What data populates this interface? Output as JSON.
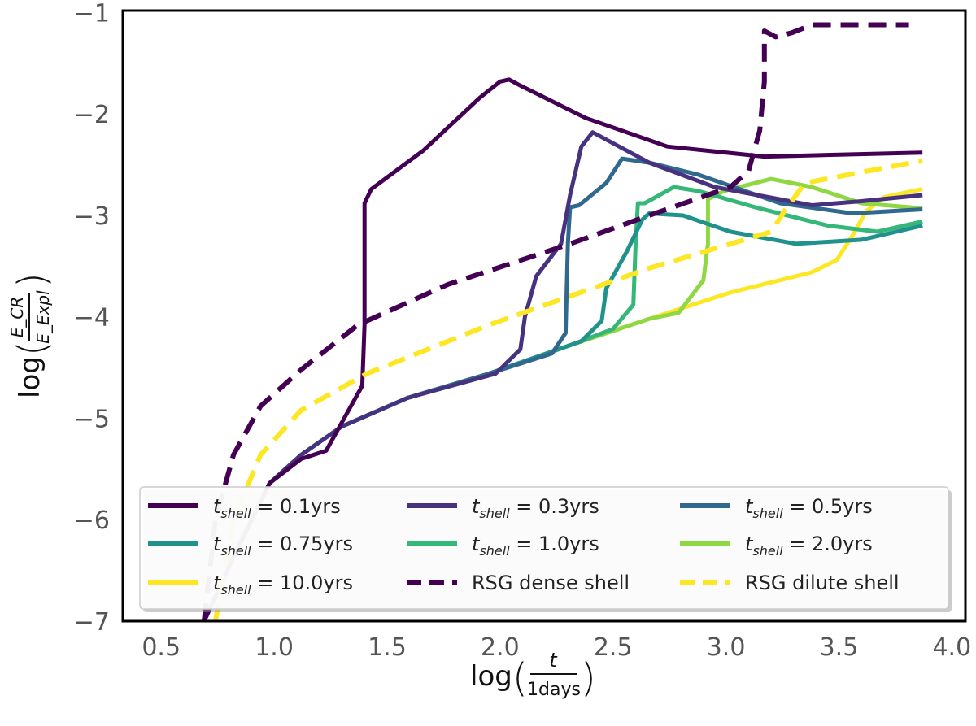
{
  "chart_data": {
    "type": "line",
    "title": "",
    "xlabel": {
      "prefix": "log",
      "numerator": "t",
      "denominator": "1days"
    },
    "ylabel": {
      "prefix": "log",
      "numerator": "E_CR",
      "denominator": "E_Expl"
    },
    "xlim": [
      0.33,
      4.06
    ],
    "ylim": [
      -7,
      -0.98
    ],
    "xticks": [
      0.5,
      1.0,
      1.5,
      2.0,
      2.5,
      3.0,
      3.5,
      4.0
    ],
    "xtick_labels": [
      "0.5",
      "1.0",
      "1.5",
      "2.0",
      "2.5",
      "3.0",
      "3.5",
      "4.0"
    ],
    "yticks": [
      -7,
      -6,
      -5,
      -4,
      -3,
      -2,
      -1
    ],
    "ytick_labels": [
      "−7",
      "−6",
      "−5",
      "−4",
      "−3",
      "−2",
      "−1"
    ],
    "grid": false,
    "legend_placement": "lower-center",
    "series": [
      {
        "name": "t_shell = 0.1yrs",
        "sub": "shell",
        "val": "0.1yrs",
        "color": "#440154",
        "dash": false,
        "points": [
          [
            0.69,
            -7
          ],
          [
            0.83,
            -6.32
          ],
          [
            0.98,
            -5.64
          ],
          [
            1.12,
            -5.4
          ],
          [
            1.23,
            -5.32
          ],
          [
            1.34,
            -4.88
          ],
          [
            1.39,
            -4.68
          ],
          [
            1.4,
            -4.08
          ],
          [
            1.4,
            -2.88
          ],
          [
            1.43,
            -2.74
          ],
          [
            1.66,
            -2.36
          ],
          [
            1.91,
            -1.84
          ],
          [
            2.0,
            -1.68
          ],
          [
            2.04,
            -1.66
          ],
          [
            2.09,
            -1.72
          ],
          [
            2.38,
            -2.04
          ],
          [
            2.74,
            -2.32
          ],
          [
            3.17,
            -2.42
          ],
          [
            3.87,
            -2.38
          ]
        ]
      },
      {
        "name": "t_shell = 0.3yrs",
        "sub": "shell",
        "val": "0.3yrs",
        "color": "#46327e",
        "dash": false,
        "points": [
          [
            0.69,
            -7
          ],
          [
            0.83,
            -6.32
          ],
          [
            0.98,
            -5.64
          ],
          [
            1.12,
            -5.36
          ],
          [
            1.3,
            -5.08
          ],
          [
            1.59,
            -4.8
          ],
          [
            1.98,
            -4.56
          ],
          [
            2.09,
            -4.32
          ],
          [
            2.11,
            -4.0
          ],
          [
            2.16,
            -3.6
          ],
          [
            2.27,
            -3.28
          ],
          [
            2.31,
            -2.8
          ],
          [
            2.36,
            -2.32
          ],
          [
            2.41,
            -2.18
          ],
          [
            2.66,
            -2.48
          ],
          [
            2.95,
            -2.72
          ],
          [
            3.38,
            -2.9
          ],
          [
            3.6,
            -2.86
          ],
          [
            3.87,
            -2.8
          ]
        ]
      },
      {
        "name": "t_shell = 0.5yrs",
        "sub": "shell",
        "val": "0.5yrs",
        "color": "#31688e",
        "dash": false,
        "points": [
          [
            0.69,
            -7
          ],
          [
            0.83,
            -6.32
          ],
          [
            0.98,
            -5.64
          ],
          [
            1.12,
            -5.36
          ],
          [
            1.3,
            -5.08
          ],
          [
            1.59,
            -4.8
          ],
          [
            1.95,
            -4.56
          ],
          [
            2.23,
            -4.36
          ],
          [
            2.29,
            -4.16
          ],
          [
            2.3,
            -3.28
          ],
          [
            2.31,
            -2.92
          ],
          [
            2.35,
            -2.9
          ],
          [
            2.47,
            -2.68
          ],
          [
            2.54,
            -2.44
          ],
          [
            2.66,
            -2.48
          ],
          [
            2.88,
            -2.6
          ],
          [
            3.24,
            -2.88
          ],
          [
            3.56,
            -2.98
          ],
          [
            3.87,
            -2.94
          ]
        ]
      },
      {
        "name": "t_shell = 0.75yrs",
        "sub": "shell",
        "val": "0.75yrs",
        "color": "#21918c",
        "dash": false,
        "points": [
          [
            0.69,
            -7
          ],
          [
            0.83,
            -6.32
          ],
          [
            0.98,
            -5.64
          ],
          [
            1.12,
            -5.36
          ],
          [
            1.3,
            -5.08
          ],
          [
            1.59,
            -4.8
          ],
          [
            1.95,
            -4.56
          ],
          [
            2.36,
            -4.24
          ],
          [
            2.45,
            -4.04
          ],
          [
            2.47,
            -3.72
          ],
          [
            2.56,
            -3.36
          ],
          [
            2.63,
            -3.04
          ],
          [
            2.66,
            -2.98
          ],
          [
            2.81,
            -3.0
          ],
          [
            3.02,
            -3.16
          ],
          [
            3.31,
            -3.28
          ],
          [
            3.6,
            -3.24
          ],
          [
            3.87,
            -3.1
          ]
        ]
      },
      {
        "name": "t_shell = 1.0yrs",
        "sub": "shell",
        "val": "1.0yrs",
        "color": "#35b779",
        "dash": false,
        "points": [
          [
            0.69,
            -7
          ],
          [
            0.83,
            -6.32
          ],
          [
            0.98,
            -5.64
          ],
          [
            1.12,
            -5.36
          ],
          [
            1.3,
            -5.08
          ],
          [
            1.59,
            -4.8
          ],
          [
            1.95,
            -4.56
          ],
          [
            2.31,
            -4.28
          ],
          [
            2.5,
            -4.12
          ],
          [
            2.59,
            -3.88
          ],
          [
            2.6,
            -3.28
          ],
          [
            2.61,
            -2.88
          ],
          [
            2.64,
            -2.88
          ],
          [
            2.77,
            -2.72
          ],
          [
            2.88,
            -2.76
          ],
          [
            3.13,
            -2.92
          ],
          [
            3.45,
            -3.1
          ],
          [
            3.67,
            -3.16
          ],
          [
            3.87,
            -3.06
          ]
        ]
      },
      {
        "name": "t_shell = 2.0yrs",
        "sub": "shell",
        "val": "2.0yrs",
        "color": "#8fd744",
        "dash": false,
        "points": [
          [
            0.69,
            -7
          ],
          [
            0.83,
            -6.32
          ],
          [
            0.98,
            -5.64
          ],
          [
            1.12,
            -5.36
          ],
          [
            1.3,
            -5.08
          ],
          [
            1.59,
            -4.8
          ],
          [
            1.95,
            -4.56
          ],
          [
            2.31,
            -4.28
          ],
          [
            2.66,
            -4.02
          ],
          [
            2.79,
            -3.96
          ],
          [
            2.9,
            -3.64
          ],
          [
            2.92,
            -3.28
          ],
          [
            2.92,
            -2.84
          ],
          [
            2.99,
            -2.76
          ],
          [
            3.2,
            -2.64
          ],
          [
            3.38,
            -2.72
          ],
          [
            3.6,
            -2.88
          ],
          [
            3.87,
            -2.93
          ]
        ]
      },
      {
        "name": "t_shell = 10.0yrs",
        "sub": "shell",
        "val": "10.0yrs",
        "color": "#fde725",
        "dash": false,
        "points": [
          [
            0.69,
            -7
          ],
          [
            0.83,
            -6.32
          ],
          [
            0.98,
            -5.64
          ],
          [
            1.12,
            -5.36
          ],
          [
            1.3,
            -5.08
          ],
          [
            1.59,
            -4.8
          ],
          [
            1.95,
            -4.56
          ],
          [
            2.31,
            -4.28
          ],
          [
            2.66,
            -4.02
          ],
          [
            3.02,
            -3.76
          ],
          [
            3.38,
            -3.56
          ],
          [
            3.49,
            -3.44
          ],
          [
            3.56,
            -3.2
          ],
          [
            3.62,
            -2.96
          ],
          [
            3.7,
            -2.82
          ],
          [
            3.87,
            -2.74
          ]
        ]
      },
      {
        "name": "RSG dense shell",
        "color": "#440154",
        "dash": true,
        "points": [
          [
            0.69,
            -7
          ],
          [
            0.74,
            -6.0
          ],
          [
            0.82,
            -5.36
          ],
          [
            0.94,
            -4.88
          ],
          [
            1.12,
            -4.52
          ],
          [
            1.37,
            -4.08
          ],
          [
            1.77,
            -3.68
          ],
          [
            2.31,
            -3.28
          ],
          [
            2.66,
            -3.0
          ],
          [
            3.02,
            -2.72
          ],
          [
            3.1,
            -2.56
          ],
          [
            3.15,
            -2.16
          ],
          [
            3.17,
            -1.68
          ],
          [
            3.17,
            -1.18
          ],
          [
            3.22,
            -1.24
          ],
          [
            3.29,
            -1.2
          ],
          [
            3.38,
            -1.12
          ],
          [
            3.81,
            -1.12
          ]
        ]
      },
      {
        "name": "RSG dilute shell",
        "color": "#fde725",
        "dash": true,
        "points": [
          [
            0.74,
            -7
          ],
          [
            0.82,
            -6.0
          ],
          [
            0.94,
            -5.36
          ],
          [
            1.12,
            -4.92
          ],
          [
            1.41,
            -4.56
          ],
          [
            1.95,
            -4.08
          ],
          [
            2.66,
            -3.52
          ],
          [
            3.2,
            -3.16
          ],
          [
            3.27,
            -2.92
          ],
          [
            3.35,
            -2.68
          ],
          [
            3.87,
            -2.46
          ]
        ]
      }
    ],
    "legend_order": [
      0,
      3,
      6,
      1,
      4,
      7,
      2,
      5,
      8
    ]
  }
}
